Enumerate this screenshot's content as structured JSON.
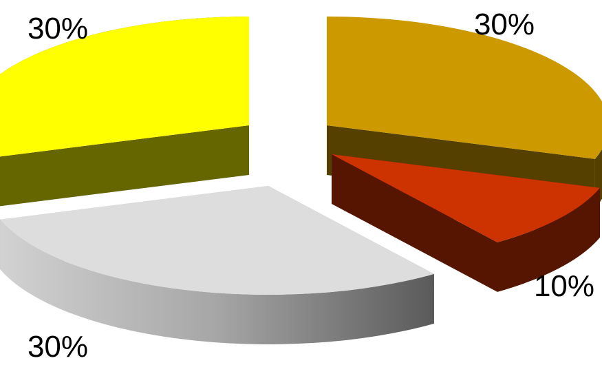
{
  "chart_data": {
    "type": "pie",
    "style": "3d-exploded",
    "title": "",
    "slices": [
      {
        "value": 30,
        "label": "30%",
        "color": "#CC9900",
        "side_color": "#554000"
      },
      {
        "value": 10,
        "label": "10%",
        "color": "#CC3300",
        "side_color": "#551500"
      },
      {
        "value": 30,
        "label": "30%",
        "color": "#DDDDDD",
        "side_color": "#AAAAAA"
      },
      {
        "value": 30,
        "label": "30%",
        "color": "#FFFF00",
        "side_color": "#666600"
      }
    ],
    "legend": "none"
  }
}
